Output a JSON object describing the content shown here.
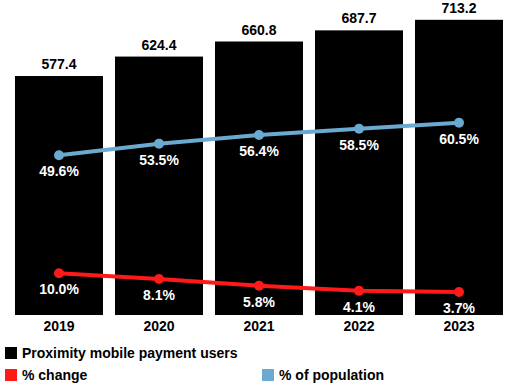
{
  "chart_data": {
    "type": "bar",
    "categories": [
      "2019",
      "2020",
      "2021",
      "2022",
      "2023"
    ],
    "series": [
      {
        "name": "Proximity mobile payment users",
        "color": "#000000",
        "values": [
          577.4,
          624.4,
          660.8,
          687.7,
          713.2
        ]
      },
      {
        "name": "% change",
        "type": "line",
        "axis": "y2",
        "color": "#ff1a1a",
        "marker": "circle",
        "values": [
          10.0,
          8.1,
          5.8,
          4.1,
          3.7
        ],
        "value_labels": [
          "10.0%",
          "8.1%",
          "5.8%",
          "4.1%",
          "3.7%"
        ]
      },
      {
        "name": "% of population",
        "type": "line",
        "axis": "y2",
        "color": "#6aaad0",
        "marker": "circle",
        "values": [
          49.6,
          53.5,
          56.4,
          58.5,
          60.5
        ],
        "value_labels": [
          "49.6%",
          "53.5%",
          "56.4%",
          "58.5%",
          "60.5%"
        ]
      }
    ],
    "ylim": [
      0,
      720
    ],
    "y2lim": [
      -4,
      96
    ],
    "tick_labels": "x",
    "data_labels": true,
    "legend": "bottom"
  }
}
